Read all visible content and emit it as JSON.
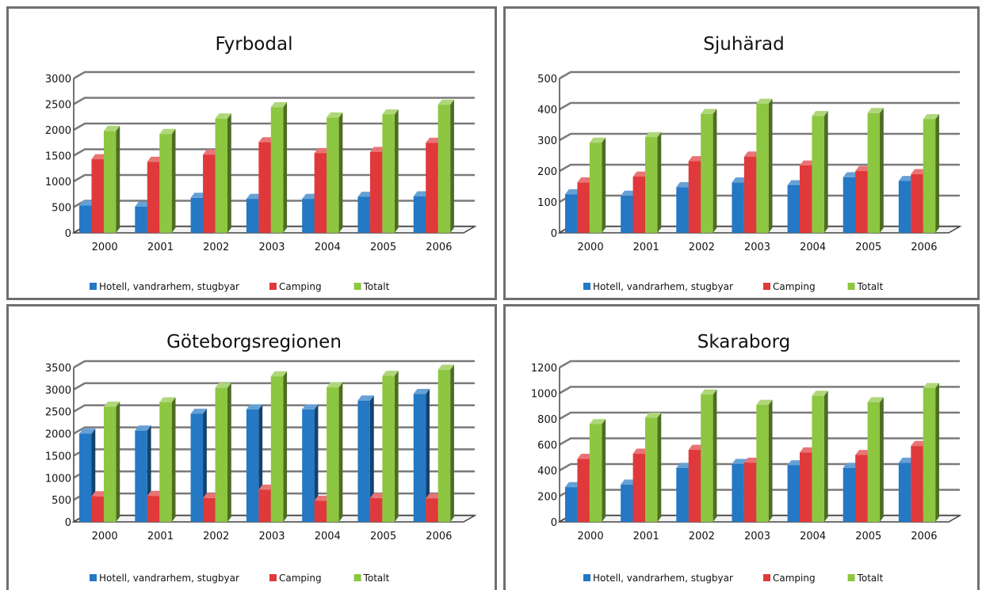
{
  "colors": {
    "hotell": "#2478c4",
    "camping": "#e0393b",
    "totalt": "#8dc641"
  },
  "chart_data": [
    {
      "type": "bar",
      "title": "Fyrbodal",
      "categories": [
        "2000",
        "2001",
        "2002",
        "2003",
        "2004",
        "2005",
        "2006"
      ],
      "ylim": [
        0,
        3000
      ],
      "yticks": [
        "0",
        "500",
        "1000",
        "1500",
        "2000",
        "2500",
        "3000"
      ],
      "grid": true,
      "legend_position": "bottom",
      "series": [
        {
          "name": "Hotell, vandrarhem, stugbyar",
          "values": [
            530,
            510,
            680,
            660,
            660,
            700,
            710
          ]
        },
        {
          "name": "Camping",
          "values": [
            1430,
            1380,
            1520,
            1760,
            1550,
            1570,
            1750
          ]
        },
        {
          "name": "Totalt",
          "values": [
            1980,
            1920,
            2220,
            2440,
            2240,
            2300,
            2490
          ]
        }
      ]
    },
    {
      "type": "bar",
      "title": "Sjuhärad",
      "categories": [
        "2000",
        "2001",
        "2002",
        "2003",
        "2004",
        "2005",
        "2006"
      ],
      "ylim": [
        0,
        500
      ],
      "yticks": [
        "0",
        "100",
        "200",
        "300",
        "400",
        "500"
      ],
      "grid": true,
      "legend_position": "bottom",
      "series": [
        {
          "name": "Hotell, vandrarhem, stugbyar",
          "values": [
            125,
            120,
            148,
            163,
            154,
            180,
            168
          ]
        },
        {
          "name": "Camping",
          "values": [
            163,
            182,
            232,
            247,
            218,
            200,
            190
          ]
        },
        {
          "name": "Totalt",
          "values": [
            292,
            310,
            385,
            418,
            378,
            388,
            368
          ]
        }
      ]
    },
    {
      "type": "bar",
      "title": "Göteborgsregionen",
      "categories": [
        "2000",
        "2001",
        "2002",
        "2003",
        "2004",
        "2005",
        "2006"
      ],
      "ylim": [
        0,
        3500
      ],
      "yticks": [
        "0",
        "500",
        "1000",
        "1500",
        "2000",
        "2500",
        "3000",
        "3500"
      ],
      "grid": true,
      "legend_position": "bottom",
      "series": [
        {
          "name": "Hotell, vandrarhem, stugbyar",
          "values": [
            2000,
            2070,
            2450,
            2550,
            2550,
            2750,
            2900
          ]
        },
        {
          "name": "Camping",
          "values": [
            580,
            590,
            540,
            730,
            480,
            540,
            530
          ]
        },
        {
          "name": "Totalt",
          "values": [
            2610,
            2710,
            3040,
            3300,
            3050,
            3310,
            3450
          ]
        }
      ]
    },
    {
      "type": "bar",
      "title": "Skaraborg",
      "categories": [
        "2000",
        "2001",
        "2002",
        "2003",
        "2004",
        "2005",
        "2006"
      ],
      "ylim": [
        0,
        1200
      ],
      "yticks": [
        "0",
        "200",
        "400",
        "600",
        "800",
        "1000",
        "1200"
      ],
      "grid": true,
      "legend_position": "bottom",
      "series": [
        {
          "name": "Hotell, vandrarhem, stugbyar",
          "values": [
            270,
            290,
            420,
            450,
            440,
            420,
            460
          ]
        },
        {
          "name": "Camping",
          "values": [
            490,
            530,
            560,
            460,
            540,
            520,
            590
          ]
        },
        {
          "name": "Totalt",
          "values": [
            760,
            810,
            990,
            910,
            980,
            930,
            1040
          ]
        }
      ]
    }
  ]
}
